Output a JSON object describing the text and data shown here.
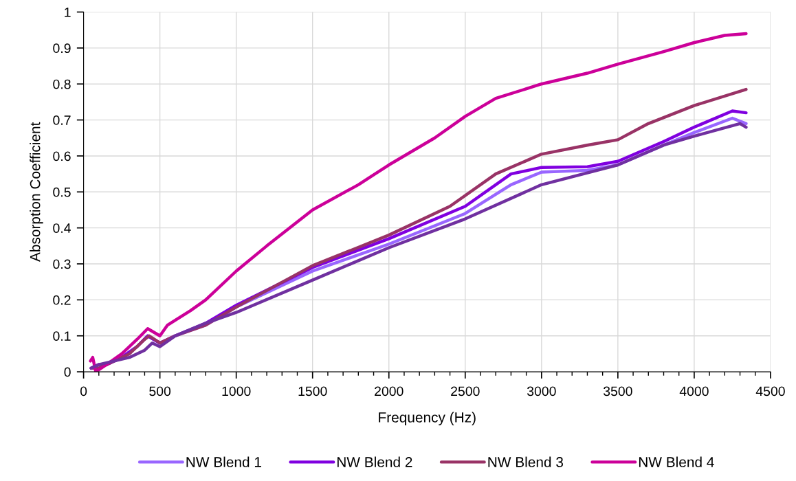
{
  "chart_data": {
    "type": "line",
    "xlabel": "Frequency (Hz)",
    "ylabel": "Absorption Coefficient",
    "xlim": [
      0,
      4500
    ],
    "xticks": [
      0,
      500,
      1000,
      1500,
      2000,
      2500,
      3000,
      3500,
      4000,
      4500
    ],
    "ylim": [
      0,
      1
    ],
    "yticks": [
      0,
      0.1,
      0.2,
      0.3,
      0.4,
      0.5,
      0.6,
      0.7,
      0.8,
      0.9,
      1
    ],
    "grid": true,
    "legend": "bottom",
    "marker": "none",
    "line_style": "solid",
    "series": [
      {
        "name": "NW Blend 1",
        "color": "#9966ff",
        "x": [
          50,
          100,
          150,
          250,
          350,
          420,
          500,
          600,
          800,
          1000,
          1500,
          2000,
          2500,
          2800,
          3000,
          3300,
          3500,
          3800,
          4000,
          4250,
          4340
        ],
        "values": [
          0.01,
          0.02,
          0.02,
          0.04,
          0.07,
          0.1,
          0.08,
          0.1,
          0.13,
          0.18,
          0.28,
          0.355,
          0.44,
          0.52,
          0.555,
          0.56,
          0.575,
          0.63,
          0.665,
          0.705,
          0.69
        ]
      },
      {
        "name": "NW Blend 2",
        "color": "#8000e0",
        "x": [
          50,
          100,
          150,
          250,
          350,
          420,
          500,
          600,
          800,
          1000,
          1500,
          2000,
          2500,
          2800,
          3000,
          3300,
          3500,
          3800,
          4000,
          4250,
          4340
        ],
        "values": [
          0.01,
          0.02,
          0.02,
          0.04,
          0.07,
          0.1,
          0.08,
          0.1,
          0.135,
          0.185,
          0.29,
          0.37,
          0.46,
          0.55,
          0.568,
          0.57,
          0.585,
          0.64,
          0.68,
          0.725,
          0.72
        ]
      },
      {
        "name": "NW Blend 3",
        "color": "#993366",
        "x": [
          50,
          100,
          150,
          300,
          400,
          430,
          500,
          600,
          800,
          1000,
          1500,
          2000,
          2400,
          2700,
          3000,
          3300,
          3500,
          3700,
          4000,
          4340
        ],
        "values": [
          0.01,
          0.01,
          0.02,
          0.05,
          0.09,
          0.1,
          0.08,
          0.1,
          0.13,
          0.18,
          0.295,
          0.38,
          0.46,
          0.55,
          0.605,
          0.63,
          0.645,
          0.69,
          0.74,
          0.785
        ]
      },
      {
        "name": "NW Blend 4",
        "color": "#cc0099",
        "x": [
          45,
          60,
          80,
          150,
          250,
          350,
          420,
          500,
          550,
          700,
          800,
          1000,
          1200,
          1500,
          1800,
          2000,
          2300,
          2500,
          2700,
          3000,
          3300,
          3500,
          3800,
          4000,
          4200,
          4340
        ],
        "values": [
          0.03,
          0.04,
          0.0,
          0.02,
          0.05,
          0.09,
          0.12,
          0.1,
          0.13,
          0.17,
          0.2,
          0.28,
          0.35,
          0.45,
          0.52,
          0.575,
          0.65,
          0.71,
          0.76,
          0.8,
          0.83,
          0.855,
          0.89,
          0.915,
          0.935,
          0.94
        ]
      },
      {
        "color": "#7030a0",
        "x": [
          50,
          100,
          200,
          300,
          400,
          450,
          500,
          600,
          800,
          1000,
          1500,
          2000,
          2500,
          3000,
          3500,
          3800,
          4000,
          4300,
          4340
        ],
        "values": [
          0.01,
          0.02,
          0.03,
          0.04,
          0.06,
          0.08,
          0.07,
          0.1,
          0.135,
          0.165,
          0.255,
          0.345,
          0.425,
          0.52,
          0.575,
          0.63,
          0.655,
          0.69,
          0.68
        ]
      }
    ]
  }
}
